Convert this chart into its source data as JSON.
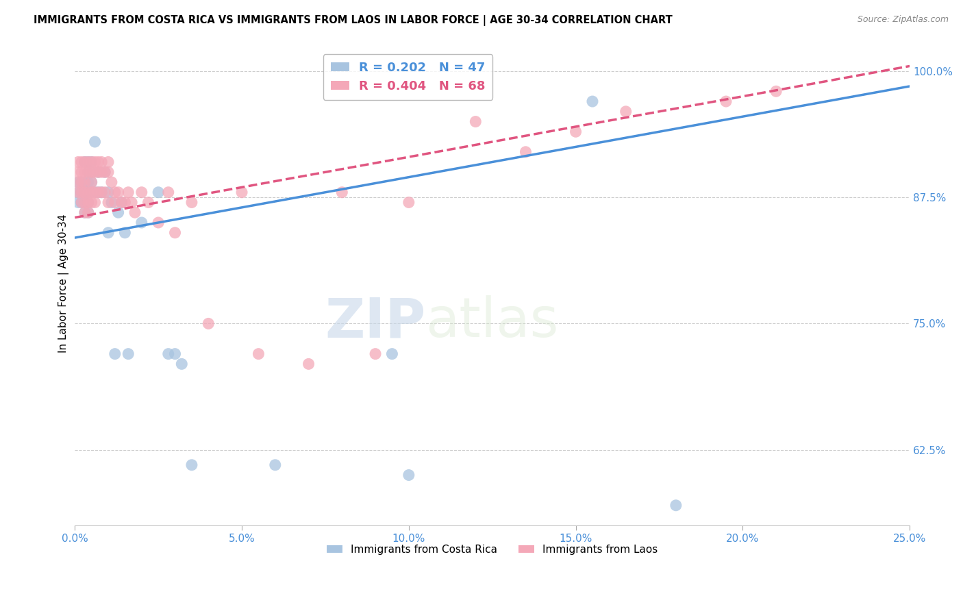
{
  "title": "IMMIGRANTS FROM COSTA RICA VS IMMIGRANTS FROM LAOS IN LABOR FORCE | AGE 30-34 CORRELATION CHART",
  "source": "Source: ZipAtlas.com",
  "ylabel": "In Labor Force | Age 30-34",
  "xlim": [
    0.0,
    0.25
  ],
  "ylim": [
    0.55,
    1.03
  ],
  "yticks": [
    0.625,
    0.75,
    0.875,
    1.0
  ],
  "ytick_labels": [
    "62.5%",
    "75.0%",
    "87.5%",
    "100.0%"
  ],
  "xticks": [
    0.0,
    0.05,
    0.1,
    0.15,
    0.2,
    0.25
  ],
  "xtick_labels": [
    "0.0%",
    "5.0%",
    "10.0%",
    "15.0%",
    "20.0%",
    "25.0%"
  ],
  "costa_rica_R": 0.202,
  "costa_rica_N": 47,
  "laos_R": 0.404,
  "laos_N": 68,
  "costa_rica_color": "#a8c4e0",
  "laos_color": "#f4a8b8",
  "line_costa_rica_color": "#4a90d9",
  "line_laos_color": "#e05580",
  "axis_color": "#4a90d9",
  "watermark_zip": "ZIP",
  "watermark_atlas": "atlas",
  "background_color": "#ffffff",
  "costa_rica_x": [
    0.001,
    0.001,
    0.001,
    0.002,
    0.002,
    0.002,
    0.002,
    0.003,
    0.003,
    0.003,
    0.003,
    0.003,
    0.003,
    0.004,
    0.004,
    0.004,
    0.004,
    0.004,
    0.005,
    0.005,
    0.005,
    0.005,
    0.006,
    0.006,
    0.007,
    0.007,
    0.008,
    0.009,
    0.01,
    0.01,
    0.011,
    0.012,
    0.013,
    0.014,
    0.015,
    0.016,
    0.02,
    0.025,
    0.028,
    0.03,
    0.032,
    0.035,
    0.06,
    0.095,
    0.1,
    0.155,
    0.18
  ],
  "costa_rica_y": [
    0.89,
    0.88,
    0.87,
    0.89,
    0.88,
    0.88,
    0.87,
    0.91,
    0.89,
    0.88,
    0.88,
    0.87,
    0.86,
    0.91,
    0.9,
    0.89,
    0.87,
    0.86,
    0.91,
    0.9,
    0.89,
    0.88,
    0.93,
    0.88,
    0.9,
    0.88,
    0.88,
    0.9,
    0.88,
    0.84,
    0.87,
    0.72,
    0.86,
    0.87,
    0.84,
    0.72,
    0.85,
    0.88,
    0.72,
    0.72,
    0.71,
    0.61,
    0.61,
    0.72,
    0.6,
    0.97,
    0.57
  ],
  "laos_x": [
    0.001,
    0.001,
    0.001,
    0.001,
    0.002,
    0.002,
    0.002,
    0.002,
    0.002,
    0.003,
    0.003,
    0.003,
    0.003,
    0.003,
    0.003,
    0.004,
    0.004,
    0.004,
    0.004,
    0.004,
    0.005,
    0.005,
    0.005,
    0.005,
    0.005,
    0.006,
    0.006,
    0.006,
    0.006,
    0.007,
    0.007,
    0.007,
    0.008,
    0.008,
    0.008,
    0.009,
    0.009,
    0.01,
    0.01,
    0.01,
    0.011,
    0.012,
    0.012,
    0.013,
    0.014,
    0.015,
    0.016,
    0.017,
    0.018,
    0.02,
    0.022,
    0.025,
    0.028,
    0.03,
    0.035,
    0.04,
    0.05,
    0.055,
    0.07,
    0.08,
    0.09,
    0.1,
    0.12,
    0.135,
    0.15,
    0.165,
    0.195,
    0.21
  ],
  "laos_y": [
    0.91,
    0.9,
    0.89,
    0.88,
    0.91,
    0.9,
    0.89,
    0.88,
    0.87,
    0.91,
    0.9,
    0.89,
    0.88,
    0.87,
    0.86,
    0.91,
    0.9,
    0.88,
    0.87,
    0.86,
    0.91,
    0.9,
    0.89,
    0.88,
    0.87,
    0.91,
    0.9,
    0.88,
    0.87,
    0.91,
    0.9,
    0.88,
    0.91,
    0.9,
    0.88,
    0.9,
    0.88,
    0.91,
    0.9,
    0.87,
    0.89,
    0.88,
    0.87,
    0.88,
    0.87,
    0.87,
    0.88,
    0.87,
    0.86,
    0.88,
    0.87,
    0.85,
    0.88,
    0.84,
    0.87,
    0.75,
    0.88,
    0.72,
    0.71,
    0.88,
    0.72,
    0.87,
    0.95,
    0.92,
    0.94,
    0.96,
    0.97,
    0.98
  ],
  "line_cr_x0": 0.0,
  "line_cr_x1": 0.25,
  "line_cr_y0": 0.835,
  "line_cr_y1": 0.985,
  "line_laos_x0": 0.0,
  "line_laos_x1": 0.25,
  "line_laos_y0": 0.855,
  "line_laos_y1": 1.005
}
